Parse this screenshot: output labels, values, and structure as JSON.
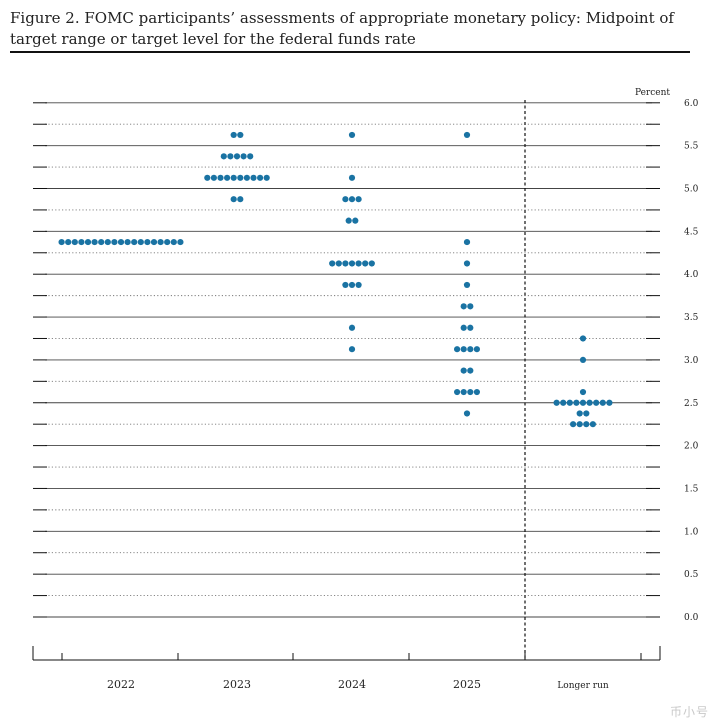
{
  "figure": {
    "title": "Figure 2.  FOMC participants’ assessments of appropriate monetary policy:  Midpoint of target range or target level for the federal funds rate"
  },
  "watermark": {
    "text": "币小号"
  },
  "chart_data": {
    "type": "scatter",
    "subtype": "dot-plot",
    "unit_label": "Percent",
    "ylim": [
      0,
      6
    ],
    "yticks": [
      "0.0",
      "0.5",
      "1.0",
      "1.5",
      "2.0",
      "2.5",
      "3.0",
      "3.5",
      "4.0",
      "4.5",
      "5.0",
      "5.5",
      "6.0"
    ],
    "categories": [
      "2022",
      "2023",
      "2024",
      "2025",
      "Longer run"
    ],
    "legend": "none",
    "grid": "dotted horizontal lines every 0.25, solid every 0.5",
    "colors": {
      "dot": "#1a73a3",
      "grid": "#555555",
      "axis": "#111111"
    },
    "series": [
      {
        "category": "2022",
        "points": [
          {
            "y": 4.375,
            "count": 19
          }
        ]
      },
      {
        "category": "2023",
        "points": [
          {
            "y": 5.625,
            "count": 2
          },
          {
            "y": 5.375,
            "count": 5
          },
          {
            "y": 5.125,
            "count": 10
          },
          {
            "y": 4.875,
            "count": 2
          }
        ]
      },
      {
        "category": "2024",
        "points": [
          {
            "y": 5.625,
            "count": 1
          },
          {
            "y": 5.125,
            "count": 1
          },
          {
            "y": 4.875,
            "count": 3
          },
          {
            "y": 4.625,
            "count": 2
          },
          {
            "y": 4.125,
            "count": 7
          },
          {
            "y": 3.875,
            "count": 3
          },
          {
            "y": 3.375,
            "count": 1
          },
          {
            "y": 3.125,
            "count": 1
          }
        ]
      },
      {
        "category": "2025",
        "points": [
          {
            "y": 5.625,
            "count": 1
          },
          {
            "y": 4.375,
            "count": 1
          },
          {
            "y": 4.125,
            "count": 1
          },
          {
            "y": 3.875,
            "count": 1
          },
          {
            "y": 3.625,
            "count": 2
          },
          {
            "y": 3.375,
            "count": 2
          },
          {
            "y": 3.125,
            "count": 4
          },
          {
            "y": 2.875,
            "count": 2
          },
          {
            "y": 2.625,
            "count": 4
          },
          {
            "y": 2.375,
            "count": 1
          }
        ]
      },
      {
        "category": "Longer run",
        "points": [
          {
            "y": 3.25,
            "count": 1
          },
          {
            "y": 3.0,
            "count": 1
          },
          {
            "y": 2.625,
            "count": 1
          },
          {
            "y": 2.5,
            "count": 9
          },
          {
            "y": 2.375,
            "count": 2
          },
          {
            "y": 2.25,
            "count": 4
          }
        ]
      }
    ]
  }
}
